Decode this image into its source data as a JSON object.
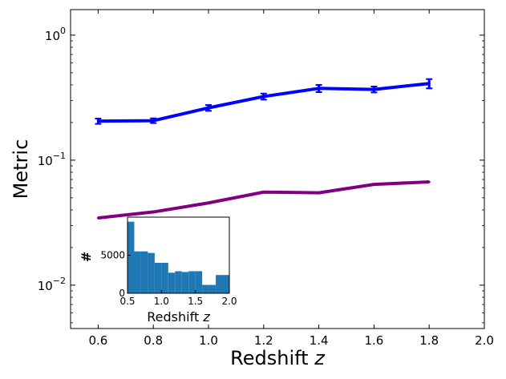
{
  "chart_data": [
    {
      "type": "line",
      "title": "",
      "xlabel": "Redshift",
      "xlabel_var": "z",
      "ylabel": "Metric",
      "xlim": [
        0.5,
        2.0
      ],
      "ylim": [
        0.0045,
        1.6
      ],
      "yscale": "log",
      "grid": false,
      "x_ticks": [
        "0.6",
        "0.8",
        "1.0",
        "1.2",
        "1.4",
        "1.6",
        "1.8",
        "2.0"
      ],
      "y_ticks": [
        {
          "value": 1,
          "base": "10",
          "exp": "0"
        },
        {
          "value": 0.1,
          "base": "10",
          "exp": "−1"
        },
        {
          "value": 0.01,
          "base": "10",
          "exp": "−2"
        }
      ],
      "series": [
        {
          "color": "#0000ff",
          "x": [
            0.6,
            0.8,
            1.0,
            1.2,
            1.4,
            1.6,
            1.8
          ],
          "y": [
            0.205,
            0.207,
            0.262,
            0.323,
            0.375,
            0.368,
            0.41
          ],
          "yerr": [
            0.01,
            0.009,
            0.014,
            0.018,
            0.025,
            0.02,
            0.035
          ]
        },
        {
          "color": "#800080",
          "x": [
            0.6,
            0.8,
            1.0,
            1.2,
            1.4,
            1.6,
            1.8
          ],
          "y": [
            0.0345,
            0.0385,
            0.0455,
            0.0555,
            0.0548,
            0.064,
            0.067
          ]
        }
      ]
    },
    {
      "type": "bar",
      "subtype": "histogram",
      "xlabel": "Redshift",
      "xlabel_var": "z",
      "ylabel": "#",
      "xlim": [
        0.5,
        2.0
      ],
      "ylim": [
        0,
        10000
      ],
      "color": "#1f77b4",
      "x_ticks": [
        "0.5",
        "1.0",
        "1.5",
        "2.0"
      ],
      "y_ticks": [
        "0",
        "5000"
      ],
      "bins": [
        {
          "x0": 0.5,
          "x1": 0.6,
          "count": 9400
        },
        {
          "x0": 0.6,
          "x1": 0.7,
          "count": 5500
        },
        {
          "x0": 0.7,
          "x1": 0.8,
          "count": 5500
        },
        {
          "x0": 0.8,
          "x1": 0.9,
          "count": 5300
        },
        {
          "x0": 0.9,
          "x1": 1.0,
          "count": 4000
        },
        {
          "x0": 1.0,
          "x1": 1.1,
          "count": 4000
        },
        {
          "x0": 1.1,
          "x1": 1.2,
          "count": 2700
        },
        {
          "x0": 1.2,
          "x1": 1.3,
          "count": 2900
        },
        {
          "x0": 1.3,
          "x1": 1.4,
          "count": 2800
        },
        {
          "x0": 1.4,
          "x1": 1.5,
          "count": 2900
        },
        {
          "x0": 1.5,
          "x1": 1.6,
          "count": 2900
        },
        {
          "x0": 1.6,
          "x1": 1.7,
          "count": 1100
        },
        {
          "x0": 1.7,
          "x1": 1.8,
          "count": 1100
        },
        {
          "x0": 1.8,
          "x1": 1.9,
          "count": 2400
        },
        {
          "x0": 1.9,
          "x1": 2.0,
          "count": 2400
        }
      ]
    }
  ]
}
